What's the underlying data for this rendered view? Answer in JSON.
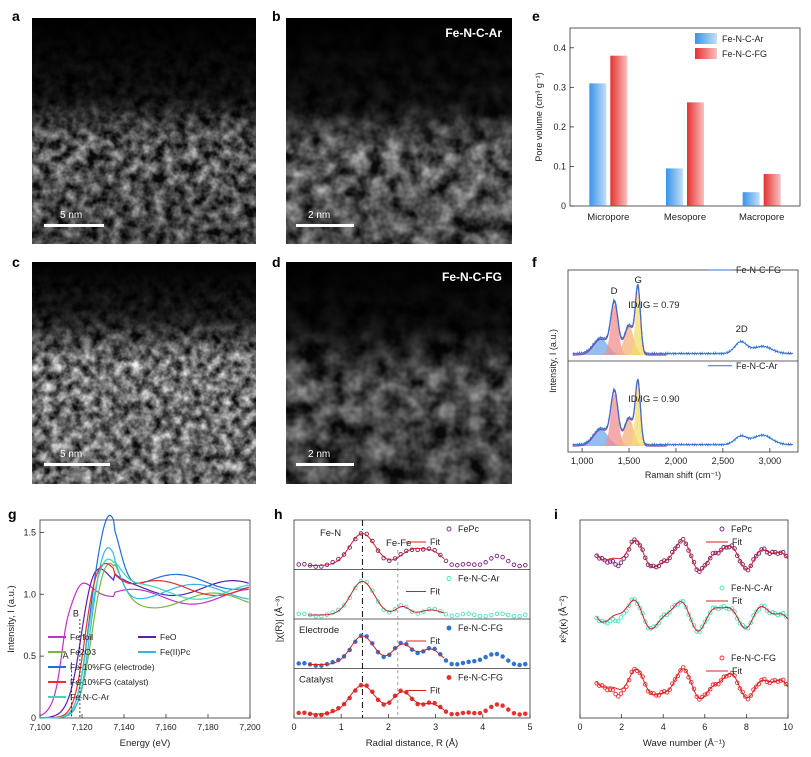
{
  "panels": {
    "a": {
      "letter": "a",
      "scale": "5 nm"
    },
    "b": {
      "letter": "b",
      "label": "Fe-N-C-Ar",
      "scale": "2 nm"
    },
    "c": {
      "letter": "c",
      "scale": "5 nm"
    },
    "d": {
      "letter": "d",
      "label": "Fe-N-C-FG",
      "scale": "2 nm"
    },
    "e": {
      "letter": "e"
    },
    "f": {
      "letter": "f"
    },
    "g": {
      "letter": "g"
    },
    "h": {
      "letter": "h"
    },
    "i": {
      "letter": "i"
    }
  },
  "chart_data": [
    {
      "id": "e",
      "type": "bar",
      "categories": [
        "Micropore",
        "Mesopore",
        "Macropore"
      ],
      "series": [
        {
          "name": "Fe-N-C-Ar",
          "values": [
            0.31,
            0.095,
            0.035
          ],
          "color": "#3a93e8"
        },
        {
          "name": "Fe-N-C-FG",
          "values": [
            0.38,
            0.262,
            0.081
          ],
          "color": "#e8302f"
        }
      ],
      "ylabel": "Pore volume (cm³ g⁻¹)",
      "ylim": [
        0,
        0.45
      ],
      "yticks": [
        "0",
        "0.1",
        "0.2",
        "0.3",
        "0.4"
      ],
      "legend": "top-right"
    },
    {
      "id": "f",
      "type": "line",
      "xlabel": "Raman shift (cm⁻¹)",
      "ylabel": "Intensity, I (a.u.)",
      "xlim": [
        850,
        3300
      ],
      "xticks": [
        "1,000",
        "1,500",
        "2,000",
        "2,500",
        "3,000"
      ],
      "subpanels": [
        {
          "name": "Fe-N-C-FG",
          "ratio_text": "ID/IG = 0.79",
          "peak_labels": [
            "D",
            "G",
            "2D"
          ]
        },
        {
          "name": "Fe-N-C-Ar",
          "ratio_text": "ID/IG = 0.90"
        }
      ],
      "color": "#2f74d0"
    },
    {
      "id": "g",
      "type": "line",
      "xlabel": "Energy (eV)",
      "ylabel": "Intensity, I (a.u.)",
      "xlim": [
        7100,
        7200
      ],
      "xticks": [
        "7,100",
        "7,120",
        "7,140",
        "7,160",
        "7,180",
        "7,200"
      ],
      "ylim": [
        0,
        1.6
      ],
      "yticks": [
        "0",
        "0.5",
        "1.0",
        "1.5"
      ],
      "annotations": [
        "A",
        "B"
      ],
      "series": [
        {
          "name": "Fe foil",
          "color": "#c430c8"
        },
        {
          "name": "FeO",
          "color": "#5a1fb0"
        },
        {
          "name": "Fe2O3",
          "color": "#7ab83c"
        },
        {
          "name": "Fe(II)Pc",
          "color": "#36b5e5"
        },
        {
          "name": "Fe-10%FG (electrode)",
          "color": "#1f6fe0"
        },
        {
          "name": "Fe-10%FG (catalyst)",
          "color": "#e8302f"
        },
        {
          "name": "Fe-N-C-Ar",
          "color": "#3fd6b5"
        }
      ]
    },
    {
      "id": "h",
      "type": "line",
      "xlabel": "Radial distance, R (Å)",
      "ylabel": "|χ(R)| (Å⁻³)",
      "xlim": [
        0,
        5
      ],
      "xticks": [
        "0",
        "1",
        "2",
        "3",
        "4",
        "5"
      ],
      "annotations": [
        "Fe-N",
        "Fe-Fe"
      ],
      "subpanels": [
        {
          "name": "FePc",
          "fit": "Fit",
          "color": "#7a1f7a"
        },
        {
          "name": "Fe-N-C-Ar",
          "fit": "Fit",
          "color": "#4de0c0"
        },
        {
          "name": "Fe-N-C-FG",
          "fit": "Fit",
          "color": "#2f74d0",
          "tag": "Electrode"
        },
        {
          "name": "Fe-N-C-FG",
          "fit": "Fit",
          "color": "#e8302f",
          "tag": "Catalyst"
        }
      ]
    },
    {
      "id": "i",
      "type": "line",
      "xlabel": "Wave number (Å⁻¹)",
      "ylabel": "κ²χ(κ) (Å⁻²)",
      "xlim": [
        0,
        10
      ],
      "xticks": [
        "0",
        "2",
        "4",
        "6",
        "8",
        "10"
      ],
      "subpanels": [
        {
          "name": "FePc",
          "fit": "Fit",
          "color": "#7a1f7a"
        },
        {
          "name": "Fe-N-C-Ar",
          "fit": "Fit",
          "color": "#4de0c0"
        },
        {
          "name": "Fe-N-C-FG",
          "fit": "Fit",
          "color": "#e8302f"
        }
      ]
    }
  ]
}
